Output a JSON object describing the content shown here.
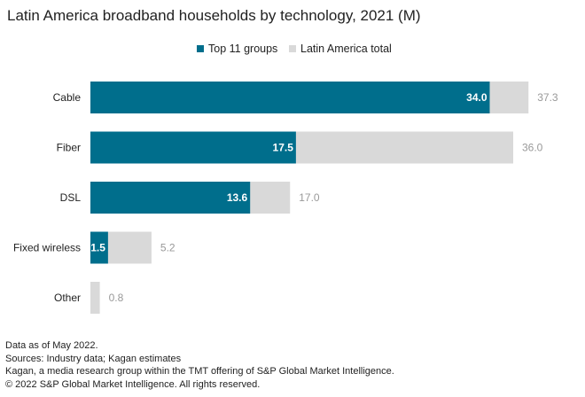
{
  "title": "Latin America broadband households by technology, 2021 (M)",
  "legend": {
    "top11": "Top 11 groups",
    "total": "Latin America total"
  },
  "colors": {
    "top11": "#006e8c",
    "total": "#d9d9d9",
    "label_outside": "#999999",
    "label_inside": "#ffffff"
  },
  "chart_data": {
    "type": "bar",
    "orientation": "horizontal",
    "title": "Latin America broadband households by technology, 2021 (M)",
    "categories": [
      "Cable",
      "Fiber",
      "DSL",
      "Fixed wireless",
      "Other"
    ],
    "series": [
      {
        "name": "Top 11 groups",
        "values": [
          34.0,
          17.5,
          13.6,
          1.5,
          0.0
        ]
      },
      {
        "name": "Latin America total",
        "values": [
          37.3,
          36.0,
          17.0,
          5.2,
          0.8
        ]
      }
    ],
    "xlim": [
      0,
      40
    ],
    "grid": false,
    "legend_position": "top-center"
  },
  "notes": [
    "Data as of May 2022.",
    "Sources: Industry data; Kagan estimates",
    "Kagan, a media research group within the TMT offering of S&P Global Market Intelligence.",
    "© 2022 S&P Global Market Intelligence. All rights reserved."
  ]
}
